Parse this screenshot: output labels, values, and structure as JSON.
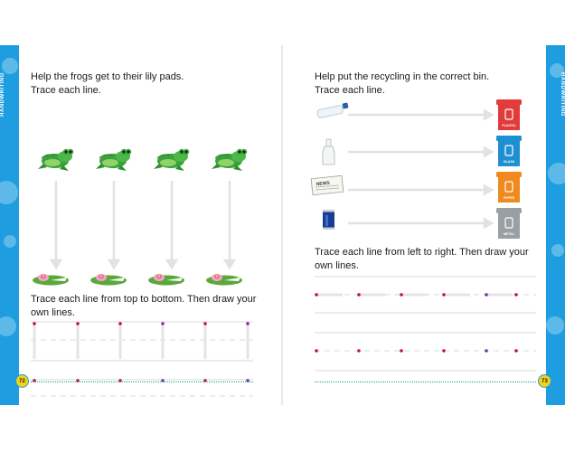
{
  "left_page": {
    "strip_label": "HANDWRITING",
    "page_number": "72",
    "instruction_1_line1": "Help the frogs get to their lily pads.",
    "instruction_1_line2": "Trace each line.",
    "instruction_2_line1": "Trace each line from top to bottom. Then draw your",
    "instruction_2_line2": "own lines.",
    "frog_count": 4
  },
  "right_page": {
    "strip_label": "HANDWRITING",
    "page_number": "73",
    "instruction_1_line1": "Help put the recycling in the correct bin.",
    "instruction_1_line2": "Trace each line.",
    "instruction_2_line1": "Trace each line from left to right. Then draw your",
    "instruction_2_line2": "own lines.",
    "bins": [
      {
        "label": "PLASTIC",
        "color": "#e23b3b"
      },
      {
        "label": "GLASS",
        "color": "#1e8fd0"
      },
      {
        "label": "PAPER",
        "color": "#f08a1e"
      },
      {
        "label": "METAL",
        "color": "#9a9fa3"
      }
    ],
    "items": [
      "plastic-bottle",
      "glass-bottle",
      "newspaper",
      "drink-can"
    ],
    "newspaper_text": "NEWS"
  },
  "colors": {
    "strip": "#1e9ee0",
    "page_number_fill": "#f3d21a",
    "dot_red": "#c8102e",
    "dot_purple": "#7b2fa0",
    "footer_line": "#1aa88a"
  }
}
